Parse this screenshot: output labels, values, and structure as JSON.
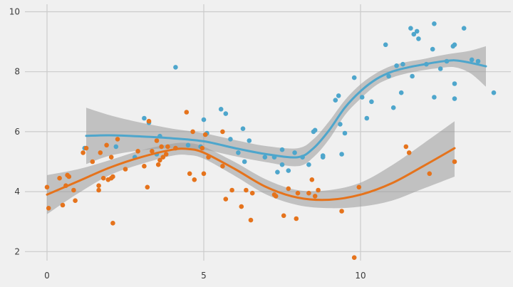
{
  "chart_data": {
    "type": "scatter",
    "title": "",
    "xlabel": "",
    "ylabel": "",
    "xlim": [
      -0.8,
      14.8
    ],
    "ylim": [
      1.55,
      10.2
    ],
    "x_ticks": [
      0,
      5,
      10
    ],
    "y_ticks": [
      2,
      4,
      6,
      8,
      10
    ],
    "grid": true,
    "legend": "none",
    "background": "#f0f0f0",
    "series": [
      {
        "color": "#4ea6cc",
        "smooth_color": "#4ea6cc",
        "points": [
          [
            1.2,
            5.45
          ],
          [
            2.2,
            5.5
          ],
          [
            2.8,
            5.15
          ],
          [
            3.1,
            6.45
          ],
          [
            3.25,
            6.3
          ],
          [
            3.5,
            5.25
          ],
          [
            3.6,
            5.85
          ],
          [
            4.1,
            8.15
          ],
          [
            4.5,
            5.55
          ],
          [
            4.9,
            5.5
          ],
          [
            5.0,
            6.4
          ],
          [
            5.1,
            5.95
          ],
          [
            5.55,
            6.75
          ],
          [
            5.7,
            6.6
          ],
          [
            5.85,
            5.75
          ],
          [
            6.1,
            5.3
          ],
          [
            6.25,
            6.1
          ],
          [
            6.3,
            5.0
          ],
          [
            6.45,
            5.7
          ],
          [
            6.95,
            5.15
          ],
          [
            7.25,
            5.15
          ],
          [
            7.35,
            4.65
          ],
          [
            7.5,
            4.9
          ],
          [
            7.5,
            5.4
          ],
          [
            7.7,
            4.7
          ],
          [
            7.9,
            5.3
          ],
          [
            8.15,
            5.15
          ],
          [
            8.35,
            4.9
          ],
          [
            8.5,
            6.0
          ],
          [
            8.55,
            6.05
          ],
          [
            8.8,
            5.2
          ],
          [
            8.8,
            5.15
          ],
          [
            9.2,
            7.05
          ],
          [
            9.3,
            7.2
          ],
          [
            9.35,
            6.25
          ],
          [
            9.4,
            5.25
          ],
          [
            9.5,
            5.95
          ],
          [
            9.8,
            7.8
          ],
          [
            10.05,
            7.15
          ],
          [
            10.2,
            6.45
          ],
          [
            10.35,
            7.0
          ],
          [
            10.8,
            8.9
          ],
          [
            10.9,
            7.85
          ],
          [
            11.05,
            6.8
          ],
          [
            11.15,
            8.2
          ],
          [
            11.3,
            7.3
          ],
          [
            11.35,
            8.25
          ],
          [
            11.6,
            9.45
          ],
          [
            11.7,
            9.25
          ],
          [
            11.8,
            9.35
          ],
          [
            11.65,
            7.85
          ],
          [
            11.85,
            9.1
          ],
          [
            12.1,
            8.25
          ],
          [
            12.3,
            8.75
          ],
          [
            12.35,
            9.6
          ],
          [
            12.35,
            7.15
          ],
          [
            12.55,
            8.1
          ],
          [
            12.75,
            8.35
          ],
          [
            12.95,
            8.85
          ],
          [
            13.0,
            8.9
          ],
          [
            13.0,
            7.6
          ],
          [
            13.0,
            7.1
          ],
          [
            13.3,
            9.45
          ],
          [
            13.55,
            8.4
          ],
          [
            13.75,
            8.35
          ],
          [
            14.25,
            7.3
          ]
        ],
        "smooth": [
          [
            1.25,
            5.86
          ],
          [
            2.0,
            5.88
          ],
          [
            3.0,
            5.84
          ],
          [
            4.0,
            5.78
          ],
          [
            5.0,
            5.68
          ],
          [
            6.0,
            5.45
          ],
          [
            7.0,
            5.25
          ],
          [
            8.0,
            5.15
          ],
          [
            8.5,
            5.45
          ],
          [
            9.0,
            6.05
          ],
          [
            9.5,
            6.8
          ],
          [
            10.0,
            7.35
          ],
          [
            10.5,
            7.75
          ],
          [
            11.0,
            8.0
          ],
          [
            11.5,
            8.14
          ],
          [
            12.0,
            8.24
          ],
          [
            12.5,
            8.33
          ],
          [
            13.0,
            8.38
          ],
          [
            13.5,
            8.3
          ],
          [
            14.0,
            8.18
          ]
        ],
        "band_upper": [
          [
            1.25,
            6.8
          ],
          [
            2.0,
            6.55
          ],
          [
            3.0,
            6.3
          ],
          [
            4.0,
            6.1
          ],
          [
            5.0,
            5.95
          ],
          [
            6.0,
            5.72
          ],
          [
            7.0,
            5.52
          ],
          [
            8.0,
            5.45
          ],
          [
            8.5,
            5.75
          ],
          [
            9.0,
            6.35
          ],
          [
            9.5,
            7.05
          ],
          [
            10.0,
            7.58
          ],
          [
            10.5,
            7.95
          ],
          [
            11.0,
            8.2
          ],
          [
            11.5,
            8.33
          ],
          [
            12.0,
            8.42
          ],
          [
            12.5,
            8.53
          ],
          [
            13.0,
            8.62
          ],
          [
            13.5,
            8.7
          ],
          [
            14.0,
            8.85
          ]
        ],
        "band_lower": [
          [
            1.25,
            4.92
          ],
          [
            2.0,
            5.2
          ],
          [
            3.0,
            5.38
          ],
          [
            4.0,
            5.45
          ],
          [
            5.0,
            5.4
          ],
          [
            6.0,
            5.18
          ],
          [
            7.0,
            4.98
          ],
          [
            8.0,
            4.85
          ],
          [
            8.5,
            5.15
          ],
          [
            9.0,
            5.75
          ],
          [
            9.5,
            6.55
          ],
          [
            10.0,
            7.1
          ],
          [
            10.5,
            7.55
          ],
          [
            11.0,
            7.8
          ],
          [
            11.5,
            7.95
          ],
          [
            12.0,
            8.05
          ],
          [
            12.5,
            8.12
          ],
          [
            13.0,
            8.15
          ],
          [
            13.5,
            7.95
          ],
          [
            14.0,
            7.5
          ]
        ]
      },
      {
        "color": "#e5731c",
        "smooth_color": "#e5731c",
        "points": [
          [
            0.0,
            4.15
          ],
          [
            0.05,
            3.45
          ],
          [
            0.4,
            4.45
          ],
          [
            0.5,
            3.55
          ],
          [
            0.6,
            4.2
          ],
          [
            0.65,
            4.55
          ],
          [
            0.7,
            4.5
          ],
          [
            0.85,
            4.05
          ],
          [
            0.9,
            3.7
          ],
          [
            1.15,
            5.3
          ],
          [
            1.25,
            5.45
          ],
          [
            1.45,
            5.0
          ],
          [
            1.65,
            4.05
          ],
          [
            1.65,
            4.2
          ],
          [
            1.7,
            5.3
          ],
          [
            1.8,
            4.45
          ],
          [
            1.95,
            4.4
          ],
          [
            1.9,
            5.55
          ],
          [
            2.05,
            4.45
          ],
          [
            2.1,
            4.5
          ],
          [
            2.05,
            5.15
          ],
          [
            2.1,
            2.95
          ],
          [
            2.25,
            5.75
          ],
          [
            2.5,
            4.75
          ],
          [
            2.9,
            5.35
          ],
          [
            3.1,
            4.85
          ],
          [
            3.2,
            4.15
          ],
          [
            3.25,
            6.35
          ],
          [
            3.35,
            5.35
          ],
          [
            3.5,
            5.7
          ],
          [
            3.55,
            4.9
          ],
          [
            3.6,
            5.05
          ],
          [
            3.65,
            5.5
          ],
          [
            3.7,
            5.15
          ],
          [
            3.8,
            5.25
          ],
          [
            3.85,
            5.5
          ],
          [
            4.1,
            5.45
          ],
          [
            4.45,
            6.65
          ],
          [
            4.55,
            4.6
          ],
          [
            4.65,
            6.0
          ],
          [
            4.7,
            4.4
          ],
          [
            4.95,
            5.45
          ],
          [
            5.0,
            4.6
          ],
          [
            5.05,
            5.9
          ],
          [
            5.15,
            5.15
          ],
          [
            5.6,
            6.0
          ],
          [
            5.6,
            4.85
          ],
          [
            5.7,
            3.75
          ],
          [
            5.9,
            4.05
          ],
          [
            6.2,
            3.5
          ],
          [
            6.35,
            4.05
          ],
          [
            6.5,
            3.05
          ],
          [
            6.55,
            3.95
          ],
          [
            7.25,
            3.9
          ],
          [
            7.3,
            3.85
          ],
          [
            7.55,
            3.2
          ],
          [
            7.7,
            4.1
          ],
          [
            7.95,
            3.1
          ],
          [
            8.0,
            3.95
          ],
          [
            8.35,
            3.95
          ],
          [
            8.45,
            4.4
          ],
          [
            8.55,
            3.85
          ],
          [
            8.65,
            4.05
          ],
          [
            9.4,
            3.35
          ],
          [
            9.8,
            1.8
          ],
          [
            9.95,
            4.15
          ],
          [
            11.45,
            5.5
          ],
          [
            11.55,
            5.3
          ],
          [
            12.2,
            4.6
          ],
          [
            13.0,
            5.0
          ]
        ],
        "smooth": [
          [
            0.0,
            3.9
          ],
          [
            1.0,
            4.35
          ],
          [
            2.0,
            4.8
          ],
          [
            3.0,
            5.15
          ],
          [
            4.0,
            5.4
          ],
          [
            4.5,
            5.42
          ],
          [
            5.0,
            5.3
          ],
          [
            6.0,
            4.75
          ],
          [
            7.0,
            4.15
          ],
          [
            8.0,
            3.8
          ],
          [
            9.0,
            3.73
          ],
          [
            10.0,
            3.9
          ],
          [
            11.0,
            4.28
          ],
          [
            12.0,
            4.85
          ],
          [
            13.0,
            5.45
          ]
        ],
        "band_upper": [
          [
            0.0,
            4.55
          ],
          [
            1.0,
            4.75
          ],
          [
            2.0,
            5.05
          ],
          [
            3.0,
            5.38
          ],
          [
            4.0,
            5.6
          ],
          [
            4.5,
            5.62
          ],
          [
            5.0,
            5.5
          ],
          [
            6.0,
            4.98
          ],
          [
            7.0,
            4.4
          ],
          [
            8.0,
            4.05
          ],
          [
            9.0,
            4.05
          ],
          [
            10.0,
            4.3
          ],
          [
            11.0,
            4.88
          ],
          [
            12.0,
            5.6
          ],
          [
            13.0,
            6.35
          ]
        ],
        "band_lower": [
          [
            0.0,
            3.25
          ],
          [
            1.0,
            3.95
          ],
          [
            2.0,
            4.55
          ],
          [
            3.0,
            4.92
          ],
          [
            4.0,
            5.2
          ],
          [
            4.5,
            5.22
          ],
          [
            5.0,
            5.1
          ],
          [
            6.0,
            4.52
          ],
          [
            7.0,
            3.9
          ],
          [
            8.0,
            3.55
          ],
          [
            9.0,
            3.45
          ],
          [
            10.0,
            3.5
          ],
          [
            11.0,
            3.7
          ],
          [
            12.0,
            4.1
          ],
          [
            13.0,
            4.5
          ]
        ]
      }
    ]
  }
}
